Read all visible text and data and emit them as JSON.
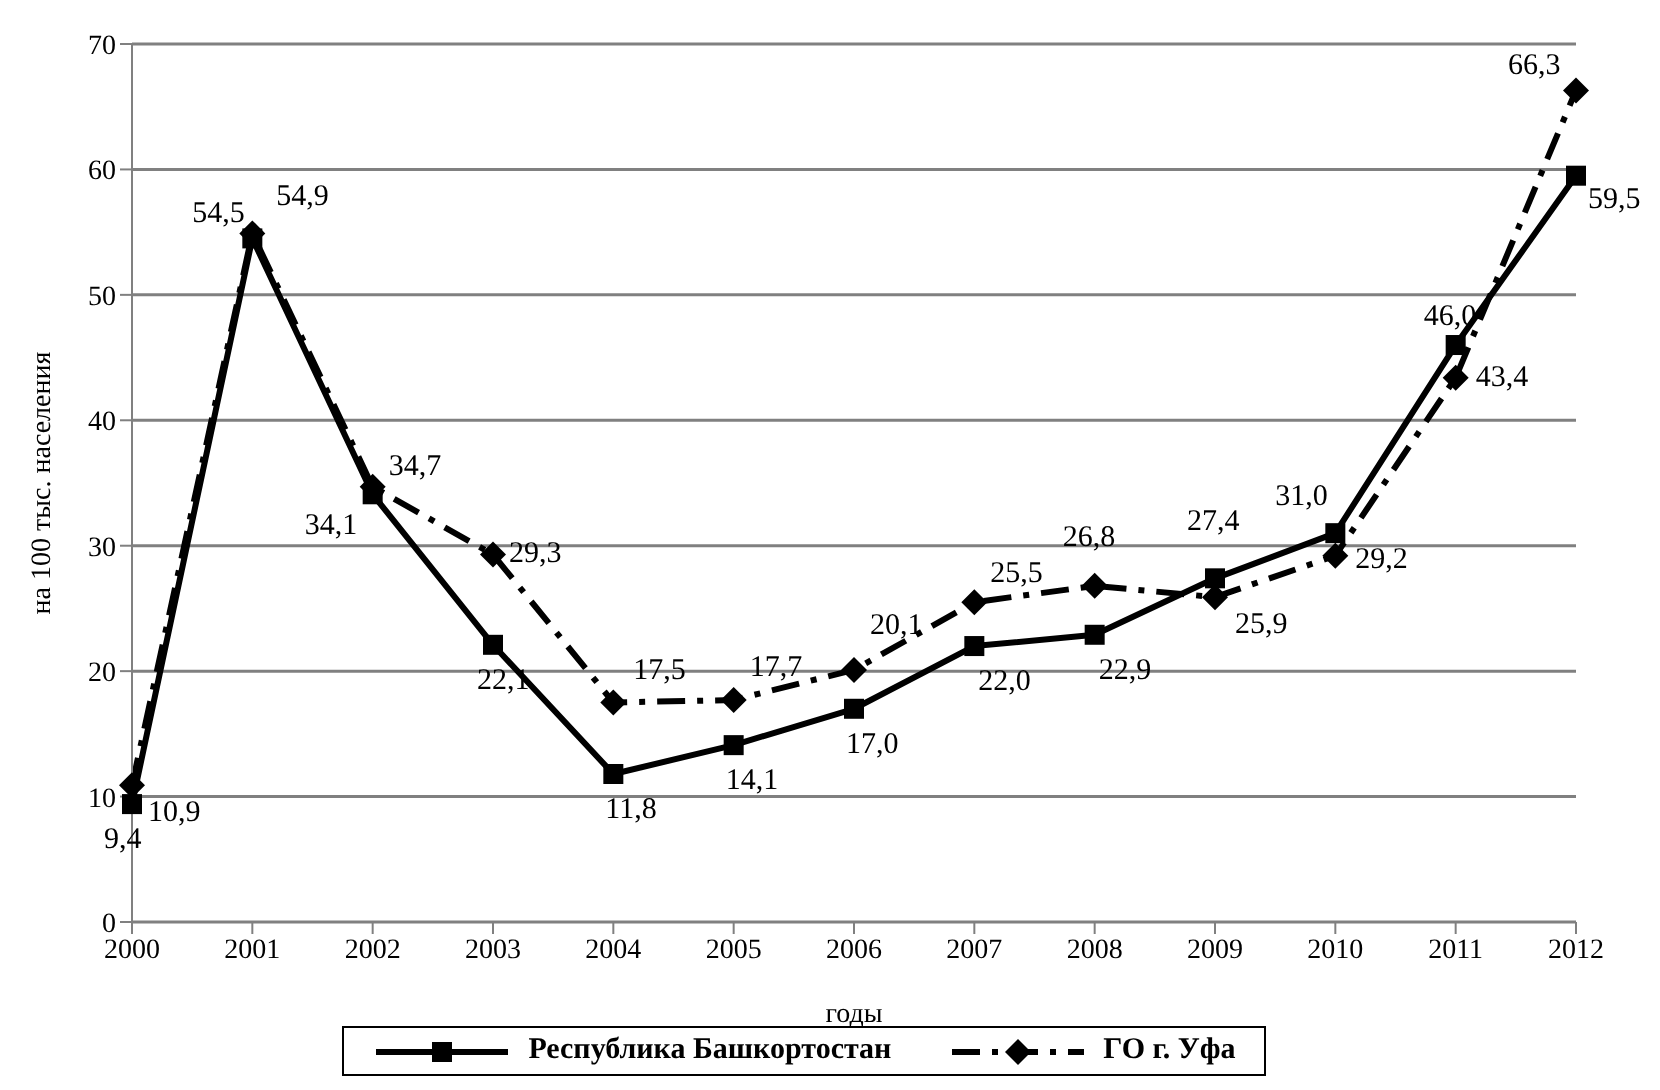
{
  "chart_data": {
    "type": "line",
    "xlabel": "годы",
    "ylabel": "на 100 тыс. населения",
    "categories": [
      "2000",
      "2001",
      "2002",
      "2003",
      "2004",
      "2005",
      "2006",
      "2007",
      "2008",
      "2009",
      "2010",
      "2011",
      "2012"
    ],
    "ylim": [
      0,
      70
    ],
    "yticks": [
      0,
      10,
      20,
      30,
      40,
      50,
      60,
      70
    ],
    "grid": "y",
    "legend": "bottom",
    "series": [
      {
        "name": "Республика Башкортостан",
        "color": "#000000",
        "marker": "square",
        "line_style": "solid",
        "values": [
          9.4,
          54.5,
          34.1,
          22.1,
          11.8,
          14.1,
          17.0,
          22.0,
          22.9,
          27.4,
          31.0,
          46.0,
          59.5
        ],
        "value_labels": [
          "9,4",
          "54,5",
          "34,1",
          "22,1",
          "11,8",
          "14,1",
          "17,0",
          "22,0",
          "22,9",
          "27,4",
          "31,0",
          "46,0",
          "59,5"
        ]
      },
      {
        "name": "ГО г. Уфа",
        "color": "#000000",
        "marker": "diamond",
        "line_style": "dashed",
        "values": [
          10.9,
          54.9,
          34.7,
          29.3,
          17.5,
          17.7,
          20.1,
          25.5,
          26.8,
          25.9,
          29.2,
          43.4,
          66.3
        ],
        "value_labels": [
          "10,9",
          "54,9",
          "34,7",
          "29,3",
          "17,5",
          "17,7",
          "20,1",
          "25,5",
          "26,8",
          "25,9",
          "29,2",
          "43,4",
          "66,3"
        ]
      }
    ]
  }
}
